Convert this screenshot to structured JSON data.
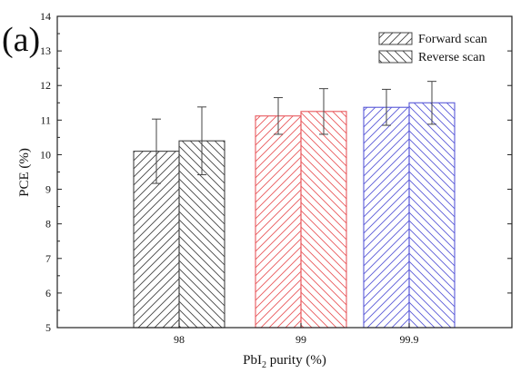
{
  "panel_label": "(a)",
  "chart_data": {
    "type": "bar",
    "title": "",
    "xlabel": {
      "prefix": "PbI",
      "subscript": "2",
      "suffix": " purity (%)"
    },
    "ylabel": "PCE (%)",
    "categories": [
      "98",
      "99",
      "99.9"
    ],
    "ylim": [
      5,
      14
    ],
    "yticks": [
      "5",
      "6",
      "7",
      "8",
      "9",
      "10",
      "11",
      "12",
      "13",
      "14"
    ],
    "series": [
      {
        "name": "Forward scan",
        "values": [
          10.1,
          11.12,
          11.37
        ],
        "errors": [
          0.93,
          0.53,
          0.52
        ],
        "hatch": "forward"
      },
      {
        "name": "Reverse scan",
        "values": [
          10.4,
          11.25,
          11.5
        ],
        "errors": [
          0.98,
          0.66,
          0.62
        ],
        "hatch": "backward"
      }
    ],
    "category_colors": [
      "#444444",
      "#e8585c",
      "#5a5ad8"
    ],
    "legend_color": "#444444",
    "legend_position": "top-right",
    "grid": false
  }
}
